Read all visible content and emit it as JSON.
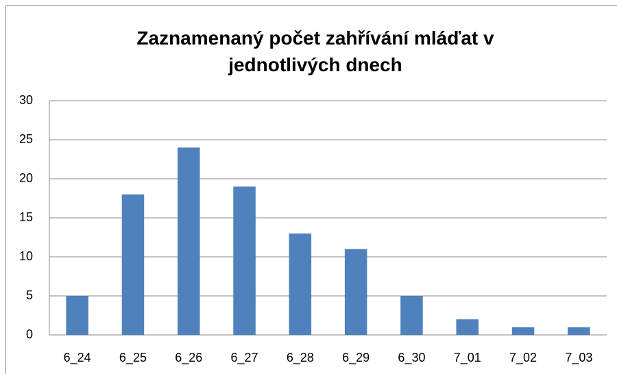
{
  "chart_data": {
    "type": "bar",
    "title": "Zaznamenaný počet zahřívání mláďat v jednotlivých dnech",
    "categories": [
      "6_24",
      "6_25",
      "6_26",
      "6_27",
      "6_28",
      "6_29",
      "6_30",
      "7_01",
      "7_02",
      "7_03"
    ],
    "values": [
      5,
      18,
      24,
      19,
      13,
      11,
      5,
      2,
      1,
      1
    ],
    "color": "#4f81bd",
    "ylim": [
      0,
      30
    ],
    "yticks": [
      0,
      5,
      10,
      15,
      20,
      25,
      30
    ],
    "grid": true
  }
}
